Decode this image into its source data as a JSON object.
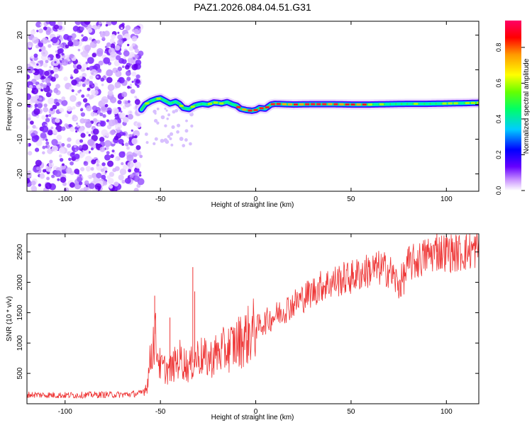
{
  "title": "PAZ1.2026.084.04.51.G31",
  "chart_data": [
    {
      "type": "heatmap",
      "title": "PAZ1.2026.084.04.51.G31",
      "xlabel": "Height of straight line (km)",
      "ylabel": "Frequency (Hz)",
      "xlim": [
        -120,
        117
      ],
      "ylim": [
        -25,
        24
      ],
      "xticks": [
        -100,
        -50,
        0,
        50,
        100
      ],
      "yticks": [
        -20,
        -10,
        0,
        10,
        20
      ],
      "xtick_labels": [
        "-100",
        "-50",
        "0",
        "50",
        "100"
      ],
      "ytick_labels": [
        "-20",
        "-10",
        "0",
        "10",
        "20"
      ],
      "noise_region_x": [
        -120,
        -60
      ],
      "signal_start_x": -60,
      "frequency_trace": {
        "x": [
          -60,
          -58,
          -55,
          -52,
          -50,
          -48,
          -45,
          -42,
          -40,
          -38,
          -35,
          -32,
          -30,
          -28,
          -25,
          -22,
          -20,
          -18,
          -15,
          -12,
          -10,
          -8,
          -5,
          -2,
          0,
          2,
          5,
          8,
          10,
          15,
          20,
          30,
          40,
          50,
          60,
          70,
          80,
          90,
          100,
          110,
          117
        ],
        "y": [
          -1.5,
          0,
          1.0,
          1.6,
          1.8,
          1.2,
          0.3,
          0.8,
          0.2,
          -1.0,
          -1.3,
          -0.3,
          0.0,
          0.2,
          0.0,
          0.6,
          0.5,
          0.3,
          0.7,
          0.0,
          -0.3,
          -1.2,
          -1.6,
          -1.8,
          -1.6,
          -1.0,
          -1.2,
          0.0,
          0.2,
          0.1,
          0.0,
          0.1,
          0.1,
          0.0,
          0.0,
          0.1,
          0.2,
          0.2,
          0.3,
          0.4,
          0.5
        ]
      },
      "colorbar": {
        "label": "Normalized spectral amplitude",
        "range": [
          0,
          0.95
        ],
        "ticks": [
          0.0,
          0.2,
          0.4,
          0.6,
          0.8
        ],
        "tick_labels": [
          "0.0",
          "0.2",
          "0.4",
          "0.6",
          "0.8"
        ],
        "colors": [
          "#ffffff",
          "#cc99ff",
          "#6600ff",
          "#0000ff",
          "#00ccff",
          "#00ff66",
          "#66ff00",
          "#ffff00",
          "#ff9900",
          "#ff0000",
          "#ff0066"
        ]
      }
    },
    {
      "type": "line",
      "xlabel": "Height of straight line (km)",
      "ylabel": "SNR (10 * v/v)",
      "xlim": [
        -120,
        117
      ],
      "ylim": [
        0,
        2800
      ],
      "xticks": [
        -100,
        -50,
        0,
        50,
        100
      ],
      "yticks": [
        500,
        1000,
        1500,
        2000,
        2500
      ],
      "xtick_labels": [
        "-100",
        "-50",
        "0",
        "50",
        "100"
      ],
      "ytick_labels": [
        "500",
        "1000",
        "1500",
        "2000",
        "2500"
      ],
      "color": "#ee3333",
      "series": [
        {
          "name": "SNR",
          "x": [
            -120,
            -100,
            -80,
            -70,
            -60,
            -57,
            -55,
            -53,
            -50,
            -45,
            -40,
            -35,
            -30,
            -25,
            -20,
            -15,
            -10,
            -5,
            0,
            5,
            10,
            15,
            20,
            25,
            30,
            35,
            40,
            45,
            50,
            55,
            60,
            65,
            70,
            75,
            78,
            80,
            85,
            90,
            95,
            100,
            105,
            110,
            117
          ],
          "y": [
            150,
            140,
            150,
            150,
            170,
            300,
            800,
            1150,
            600,
            550,
            750,
            600,
            800,
            720,
            830,
            900,
            1000,
            1100,
            1250,
            1350,
            1450,
            1550,
            1650,
            1750,
            1850,
            1950,
            2000,
            2050,
            2080,
            2150,
            2200,
            2230,
            2200,
            1950,
            2100,
            2300,
            2350,
            2450,
            2500,
            2500,
            2480,
            2500,
            2550
          ]
        }
      ],
      "spikes": [
        {
          "x": -53,
          "y": 1780
        },
        {
          "x": -45,
          "y": 1420
        },
        {
          "x": -33,
          "y": 2250
        },
        {
          "x": -32,
          "y": 1850
        },
        {
          "x": 95,
          "y": 2800
        }
      ]
    }
  ]
}
